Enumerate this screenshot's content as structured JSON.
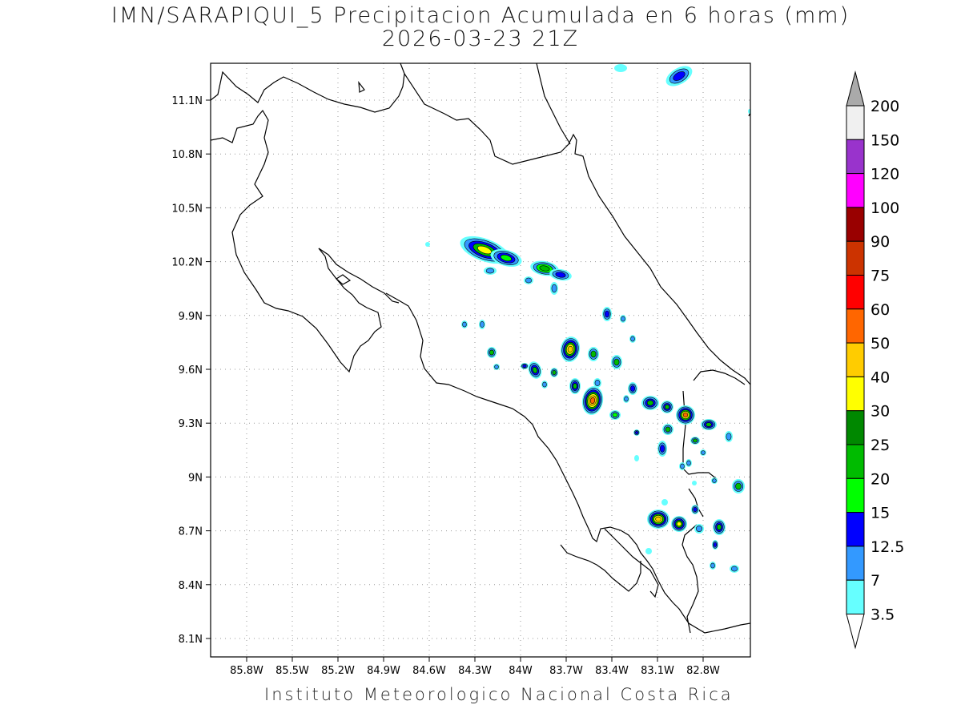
{
  "title": {
    "line1": "IMN/SARAPIQUI_5 Precipitacion Acumulada en 6 horas (mm)",
    "line2": "2026-03-23 21Z"
  },
  "footer": "Instituto Meteorologico Nacional Costa Rica",
  "map": {
    "lat_ticks": [
      "11.1N",
      "10.8N",
      "10.5N",
      "10.2N",
      "9.9N",
      "9.6N",
      "9.3N",
      "9N",
      "8.7N",
      "8.4N",
      "8.1N"
    ],
    "lon_ticks": [
      "85.8W",
      "85.5W",
      "85.2W",
      "84.9W",
      "84.6W",
      "84.3W",
      "84W",
      "83.7W",
      "83.4W",
      "83.1W",
      "82.8W"
    ],
    "grid": "dotted"
  },
  "legend": {
    "labels": [
      "200",
      "150",
      "120",
      "100",
      "90",
      "75",
      "60",
      "50",
      "40",
      "30",
      "25",
      "20",
      "15",
      "12.5",
      "7",
      "3.5"
    ],
    "colors": [
      "#f0f0f0",
      "#9933cc",
      "#ff00ff",
      "#990000",
      "#cc3300",
      "#ff0000",
      "#ff6600",
      "#ffcc00",
      "#ffff00",
      "#008800",
      "#00bb00",
      "#00ff00",
      "#0000ff",
      "#3399ff",
      "#66ffff"
    ],
    "top_arrow_color": "#aaaaaa",
    "bottom_arrow_color": "#ffffff"
  }
}
